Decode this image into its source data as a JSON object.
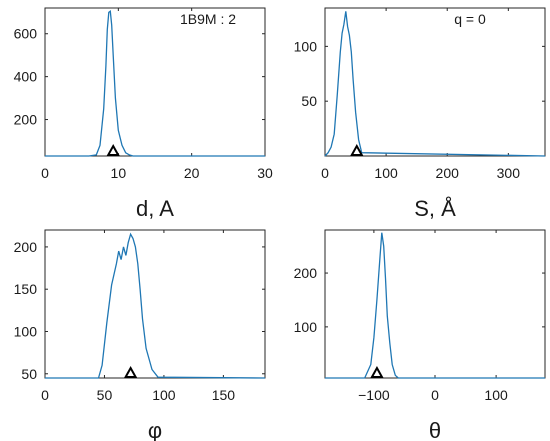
{
  "chart_data": [
    {
      "type": "line",
      "annotation": "1B9M : 2",
      "xlabel": "d, A",
      "xlim": [
        0,
        30
      ],
      "ylim": [
        30,
        720
      ],
      "xticks": [
        0,
        10,
        20,
        30
      ],
      "yticks": [
        200,
        400,
        600
      ],
      "marker": 9.3,
      "series": [
        {
          "color": "#1f77b4",
          "x": [
            0,
            6,
            7,
            7.5,
            8,
            8.3,
            8.5,
            8.7,
            8.9,
            9.1,
            9.3,
            9.6,
            10,
            10.5,
            11,
            11.5,
            12,
            30
          ],
          "y": [
            30,
            30,
            35,
            80,
            250,
            450,
            620,
            700,
            705,
            640,
            500,
            300,
            150,
            80,
            45,
            35,
            30,
            30
          ]
        }
      ]
    },
    {
      "type": "line",
      "annotation": "q = 0",
      "xlabel": "S, Å",
      "xlim": [
        0,
        360
      ],
      "ylim": [
        0,
        135
      ],
      "xticks": [
        0,
        100,
        200,
        300
      ],
      "yticks": [
        50,
        100
      ],
      "marker": 52,
      "series": [
        {
          "color": "#1f77b4",
          "x": [
            0,
            5,
            10,
            15,
            20,
            25,
            28,
            31,
            34,
            37,
            40,
            43,
            46,
            50,
            55,
            60,
            360
          ],
          "y": [
            0,
            3,
            8,
            20,
            55,
            95,
            112,
            120,
            132,
            118,
            110,
            95,
            70,
            40,
            15,
            3,
            0
          ]
        }
      ]
    },
    {
      "type": "line",
      "xlabel": "φ",
      "xlim": [
        0,
        185
      ],
      "ylim": [
        45,
        220
      ],
      "xticks": [
        0,
        50,
        100,
        150
      ],
      "yticks": [
        50,
        100,
        150,
        200
      ],
      "marker": 72,
      "series": [
        {
          "color": "#1f77b4",
          "x": [
            0,
            45,
            48,
            52,
            56,
            60,
            62,
            64,
            66,
            68,
            70,
            72,
            74,
            76,
            78,
            80,
            82,
            85,
            90,
            95,
            185
          ],
          "y": [
            45,
            45,
            60,
            110,
            155,
            180,
            195,
            185,
            200,
            190,
            205,
            215,
            210,
            200,
            180,
            150,
            115,
            80,
            55,
            46,
            45
          ]
        }
      ]
    },
    {
      "type": "line",
      "xlabel": "θ",
      "xlim": [
        -180,
        180
      ],
      "ylim": [
        5,
        280
      ],
      "xticks": [
        -100,
        0,
        100
      ],
      "yticks": [
        100,
        200
      ],
      "marker": -95,
      "series": [
        {
          "color": "#1f77b4",
          "x": [
            -180,
            -115,
            -105,
            -100,
            -95,
            -90,
            -87,
            -84,
            -81,
            -78,
            -74,
            -70,
            -65,
            -60,
            180
          ],
          "y": [
            5,
            5,
            30,
            80,
            150,
            230,
            275,
            250,
            190,
            120,
            70,
            30,
            10,
            5,
            5
          ]
        }
      ]
    }
  ]
}
